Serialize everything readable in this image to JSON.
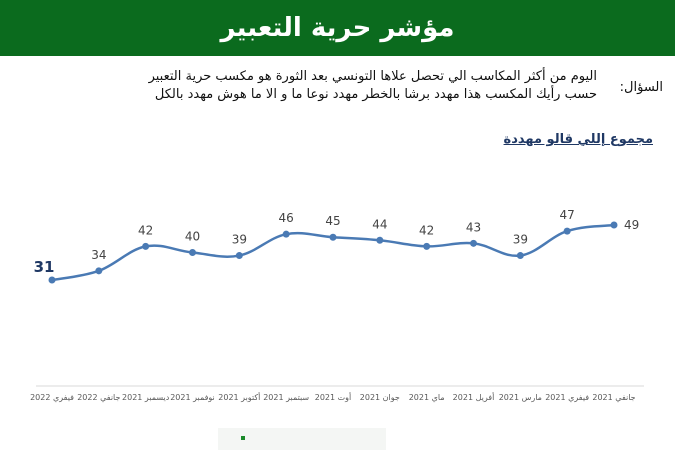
{
  "header": {
    "title": "مؤشر حرية التعبير"
  },
  "question": {
    "label": "السؤال:",
    "line1": "اليوم من أكثر المكاسب الي تحصل علاها التونسي بعد الثورة هو مكسب حرية التعبير",
    "line2": "حسب رأيك المكسب هذا مهدد برشا بالخطر مهدد نوعا ما و الا ما هوش مهدد بالكل"
  },
  "chart_data": {
    "type": "line",
    "title": "مجموع إللي قالو مهددة",
    "xlabel": "",
    "ylabel": "",
    "categories": [
      "جانفي 2021",
      "فيفري 2021",
      "مارس 2021",
      "أفريل 2021",
      "ماي 2021",
      "جوان 2021",
      "أوت 2021",
      "سبتمبر 2021",
      "أكتوبر 2021",
      "نوفمبر 2021",
      "ديسمبر 2021",
      "جانفي 2022",
      "فيفري 2022"
    ],
    "series": [
      {
        "values": [
          49,
          47,
          39,
          43,
          42,
          44,
          45,
          46,
          39,
          40,
          42,
          34,
          31
        ]
      }
    ],
    "ylim": [
      25,
      55
    ],
    "grid": false,
    "line_color": "#4a7ab4",
    "label_color": "#444444",
    "highlight_color": "#1f3864"
  }
}
